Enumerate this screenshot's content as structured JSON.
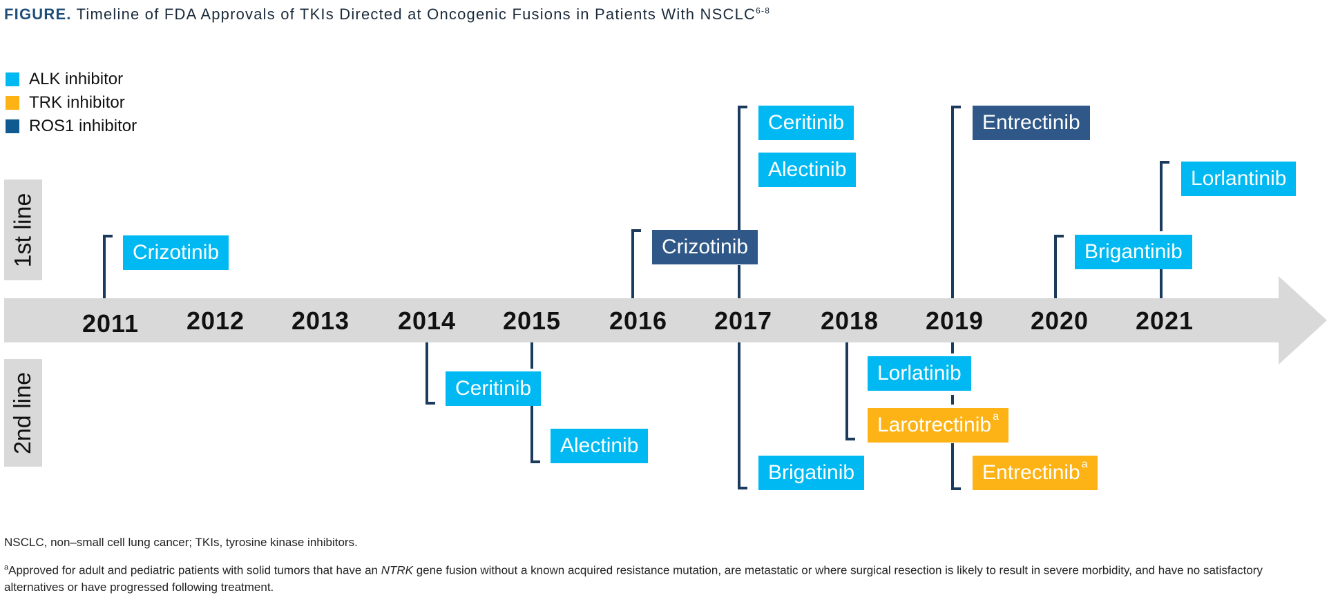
{
  "title": {
    "lead": "FIGURE.",
    "text": "Timeline of FDA Approvals of TKIs Directed at Oncogenic Fusions in Patients With NSCLC",
    "ref": "6-8"
  },
  "legend": {
    "alk": {
      "label": "ALK inhibitor",
      "color": "#00b9f2"
    },
    "trk": {
      "label": "TRK inhibitor",
      "color": "#fdb316"
    },
    "ros1": {
      "label": "ROS1 inhibitor",
      "color": "#0e5a91"
    }
  },
  "line_labels": {
    "first": "1st line",
    "second": "2nd line"
  },
  "years": [
    "2011",
    "2012",
    "2013",
    "2014",
    "2015",
    "2016",
    "2017",
    "2018",
    "2019",
    "2020",
    "2021"
  ],
  "first_line": [
    {
      "name": "Crizotinib",
      "year": "2011",
      "class": "ALK"
    },
    {
      "name": "Crizotinib",
      "year": "2016",
      "class": "ROS1"
    },
    {
      "name": "Ceritinib",
      "year": "2017",
      "class": "ALK"
    },
    {
      "name": "Alectinib",
      "year": "2017",
      "class": "ALK"
    },
    {
      "name": "Entrectinib",
      "year": "2019",
      "class": "ROS1"
    },
    {
      "name": "Brigantinib",
      "year": "2020",
      "class": "ALK"
    },
    {
      "name": "Lorlantinib",
      "year": "2021",
      "class": "ALK"
    }
  ],
  "second_line": [
    {
      "name": "Ceritinib",
      "year": "2014",
      "class": "ALK"
    },
    {
      "name": "Alectinib",
      "year": "2015",
      "class": "ALK"
    },
    {
      "name": "Brigatinib",
      "year": "2017",
      "class": "ALK"
    },
    {
      "name": "Lorlatinib",
      "year": "2018",
      "class": "ALK"
    },
    {
      "name": "Larotrectinib",
      "mark": "a",
      "year": "2018",
      "class": "TRK"
    },
    {
      "name": "Entrectinib",
      "mark": "a",
      "year": "2019",
      "class": "TRK"
    }
  ],
  "footnotes": {
    "abbrev": "NSCLC, non–small cell lung cancer; TKIs, tyrosine kinase inhibitors.",
    "mark": "a",
    "note_pre": "Approved for adult and pediatric patients with solid tumors that have an ",
    "note_em": "NTRK",
    "note_post": " gene fusion without a known acquired resistance mutation, are metastatic or where surgical resection is likely to result in severe morbidity, and have no satisfactory alternatives or have progressed following treatment."
  }
}
